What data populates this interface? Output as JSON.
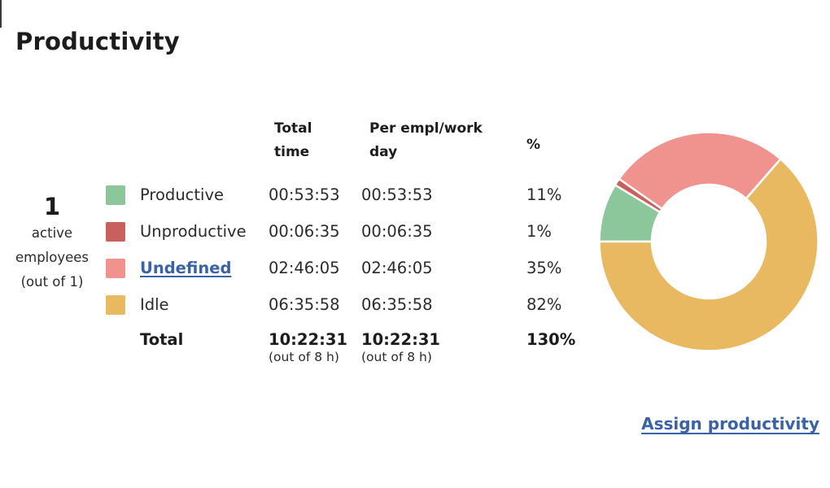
{
  "title": "Productivity",
  "active_employees": {
    "count": "1",
    "label_lines": [
      "active",
      "employees",
      "(out of 1)"
    ]
  },
  "table": {
    "headers": {
      "total_time": "Total time",
      "per_empl": "Per empl/work day",
      "percent": "%"
    },
    "rows": [
      {
        "label": "Productive",
        "color": "#8bc79a",
        "total_time": "00:53:53",
        "per_empl": "00:53:53",
        "percent": "11%",
        "is_link": false
      },
      {
        "label": "Unproductive",
        "color": "#c8605c",
        "total_time": "00:06:35",
        "per_empl": "00:06:35",
        "percent": "1%",
        "is_link": false
      },
      {
        "label": "Undefined",
        "color": "#f0928e",
        "total_time": "02:46:05",
        "per_empl": "02:46:05",
        "percent": "35%",
        "is_link": true
      },
      {
        "label": "Idle",
        "color": "#e9b962",
        "total_time": "06:35:58",
        "per_empl": "06:35:58",
        "percent": "82%",
        "is_link": false
      }
    ],
    "total": {
      "label": "Total",
      "total_time": "10:22:31",
      "total_time_note": "(out of 8 h)",
      "per_empl": "10:22:31",
      "per_empl_note": "(out of 8 h)",
      "percent": "130%"
    }
  },
  "chart_data": {
    "type": "pie",
    "subtype": "donut",
    "labels": [
      "Productive",
      "Unproductive",
      "Undefined",
      "Idle"
    ],
    "values_time": [
      "00:53:53",
      "00:06:35",
      "02:46:05",
      "06:35:58"
    ],
    "values_seconds": [
      3233,
      395,
      9965,
      23758
    ],
    "percent_of_total": [
      8.7,
      1.1,
      26.7,
      63.6
    ],
    "percent_of_workday": [
      11,
      1,
      35,
      82
    ],
    "colors": [
      "#8bc79a",
      "#c8605c",
      "#f0928e",
      "#e9b962"
    ],
    "start_angle_deg": 270,
    "inner_radius_ratio": 0.52,
    "legend_position": "left-table",
    "title": ""
  },
  "footer": {
    "assign_link_label": "Assign productivity"
  },
  "colors": {
    "link_blue": "#3a62a7",
    "text_dark": "#2b2b2b"
  }
}
